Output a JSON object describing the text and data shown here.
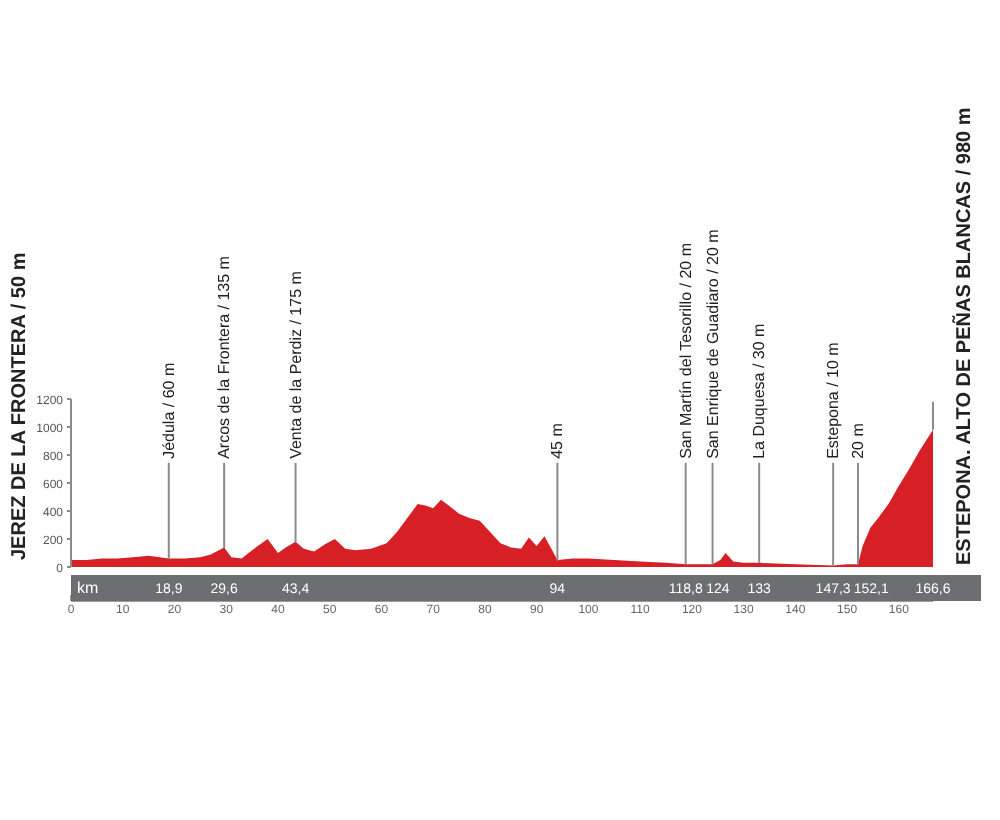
{
  "chart_data": {
    "type": "area",
    "x": [
      0,
      3,
      6,
      9,
      12,
      15,
      18.9,
      22,
      25,
      27,
      29.6,
      31,
      33,
      35,
      38,
      40,
      41.5,
      43.4,
      45,
      47,
      49,
      51,
      53,
      55,
      58,
      61,
      63,
      65,
      67,
      68.5,
      70,
      71.5,
      73,
      75,
      77,
      79,
      81,
      83,
      85,
      87,
      88.5,
      90,
      91.5,
      93,
      94,
      97,
      100,
      105,
      110,
      115,
      118.8,
      124,
      125.5,
      126.5,
      128,
      130,
      133,
      140,
      147.3,
      150,
      152.1,
      153,
      154.5,
      156,
      158,
      160,
      162,
      164,
      166.6
    ],
    "series": [
      {
        "color": "#d71f26",
        "values": [
          50,
          50,
          60,
          60,
          70,
          80,
          60,
          60,
          70,
          90,
          140,
          70,
          60,
          120,
          200,
          100,
          140,
          180,
          130,
          110,
          160,
          200,
          130,
          120,
          130,
          170,
          250,
          350,
          450,
          440,
          420,
          480,
          440,
          380,
          350,
          330,
          250,
          170,
          140,
          130,
          210,
          150,
          220,
          120,
          50,
          60,
          60,
          50,
          40,
          30,
          20,
          20,
          50,
          100,
          40,
          30,
          30,
          20,
          10,
          20,
          20,
          150,
          280,
          350,
          450,
          580,
          700,
          830,
          980
        ]
      }
    ],
    "xlim": [
      0,
      166.6
    ],
    "xticks": [
      0,
      10,
      20,
      30,
      40,
      50,
      60,
      70,
      80,
      90,
      100,
      110,
      120,
      130,
      140,
      150,
      160
    ],
    "ylim": [
      0,
      1200
    ],
    "yticks": [
      0,
      200,
      400,
      600,
      800,
      1000,
      1200
    ],
    "x2lim": [
      0,
      166.6
    ],
    "x2label": "km",
    "x2ticks": [
      {
        "value": 18.9,
        "label": "18,9"
      },
      {
        "value": 29.6,
        "label": "29,6"
      },
      {
        "value": 43.4,
        "label": "43,4"
      },
      94,
      {
        "value": 118.8,
        "label": "118,8"
      },
      124,
      133,
      {
        "value": 147.3,
        "label": "147,3"
      },
      {
        "value": 152.1,
        "label": "152,1"
      },
      {
        "value": 166.6,
        "label": "166,6"
      }
    ],
    "annotations": [
      {
        "text": "JEREZ DE LA FRONTERA / 50 m",
        "x": 0,
        "y": 50
      },
      {
        "text": "Jédula / 60 m",
        "x": 18.9,
        "y": 60
      },
      {
        "text": "Arcos de la Frontera / 135 m",
        "x": 29.6,
        "y": 135
      },
      {
        "text": "Venta de la Perdiz / 175 m",
        "x": 43.4,
        "y": 175
      },
      {
        "text": "45 m",
        "x": 94,
        "y": 45
      },
      {
        "text": "San Martín del Tesorillo / 20 m",
        "x": 118.8,
        "y": 20
      },
      {
        "text": "San Enrique de Guadiaro / 20 m",
        "x": 124,
        "y": 20
      },
      {
        "text": "La Duquesa / 30 m",
        "x": 133,
        "y": 30
      },
      {
        "text": "Estepona / 10 m",
        "x": 147.3,
        "y": 10
      },
      {
        "text": "20 m",
        "x": 152.1,
        "y": 20
      },
      {
        "text": "ESTEPONA. ALTO DE PEÑAS BLANCAS / 980 m",
        "x": 166.6,
        "y": 980
      }
    ]
  }
}
